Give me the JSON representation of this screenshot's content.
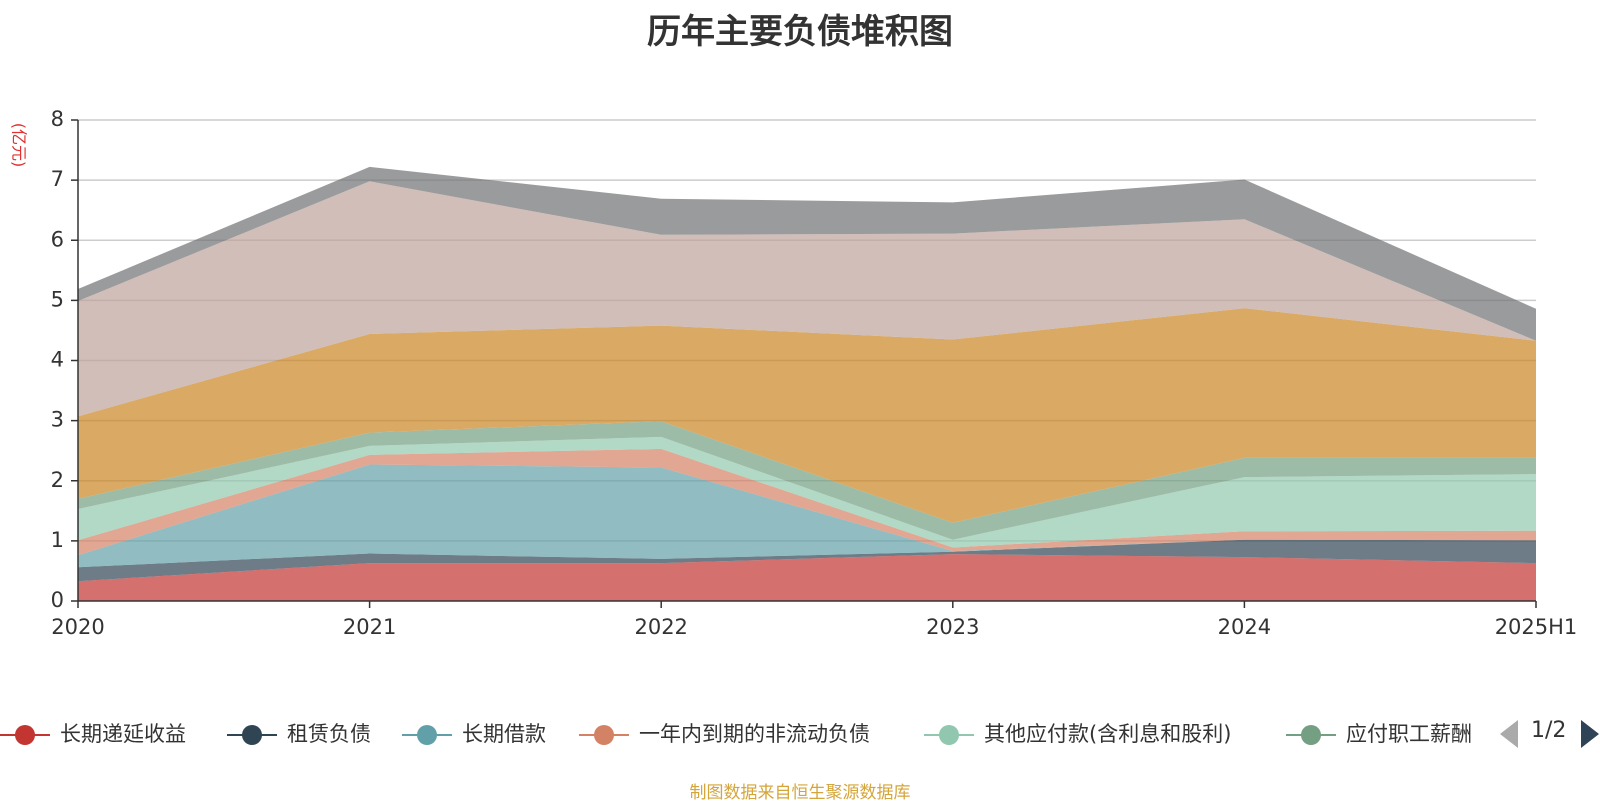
{
  "chart_data": {
    "type": "area",
    "title": "历年主要负债堆积图",
    "ylabel": "(亿元)",
    "xlabel": "",
    "categories": [
      "2020",
      "2021",
      "2022",
      "2023",
      "2024",
      "2025H1"
    ],
    "ylim": [
      0,
      8
    ],
    "yticks": [
      "0",
      "1",
      "2",
      "3",
      "4",
      "5",
      "6",
      "7",
      "8"
    ],
    "grid": true,
    "stacked": true,
    "series": [
      {
        "name": "长期递延收益",
        "color": "#c23531",
        "values": [
          0.33,
          0.63,
          0.63,
          0.78,
          0.73,
          0.63
        ]
      },
      {
        "name": "租赁负债",
        "color": "#2f4554",
        "values": [
          0.23,
          0.16,
          0.07,
          0.04,
          0.29,
          0.38
        ]
      },
      {
        "name": "长期借款",
        "color": "#61a0a8",
        "values": [
          0.2,
          1.48,
          1.52,
          0.01,
          0.0,
          0.0
        ]
      },
      {
        "name": "一年内到期的非流动负债",
        "color": "#d48265",
        "values": [
          0.25,
          0.16,
          0.31,
          0.06,
          0.14,
          0.16
        ]
      },
      {
        "name": "其他应付款(含利息和股利)",
        "color": "#91c7ae",
        "values": [
          0.52,
          0.15,
          0.2,
          0.13,
          0.9,
          0.94
        ]
      },
      {
        "name": "应付职工薪酬",
        "color": "#749f83",
        "values": [
          0.17,
          0.22,
          0.26,
          0.28,
          0.32,
          0.27
        ]
      },
      {
        "name": "",
        "color": "#ca8622",
        "values": [
          1.37,
          1.64,
          1.59,
          3.05,
          2.49,
          1.95
        ]
      },
      {
        "name": "",
        "color": "#bda29a",
        "values": [
          1.92,
          2.54,
          1.51,
          1.76,
          1.48,
          0.0
        ]
      },
      {
        "name": "",
        "color": "#6e7074",
        "values": [
          0.2,
          0.24,
          0.6,
          0.52,
          0.66,
          0.53
        ]
      }
    ],
    "legend": {
      "position": "bottom",
      "visible_items": [
        "长期递延收益",
        "租赁负债",
        "长期借款",
        "一年内到期的非流动负债",
        "其他应付款(含利息和股利)",
        "应付职工薪酬"
      ]
    }
  },
  "legend_pager": {
    "text": "1/2",
    "inactive_color": "#aaaaaa",
    "active_color": "#2e4356"
  },
  "footer": "制图数据来自恒生聚源数据库"
}
